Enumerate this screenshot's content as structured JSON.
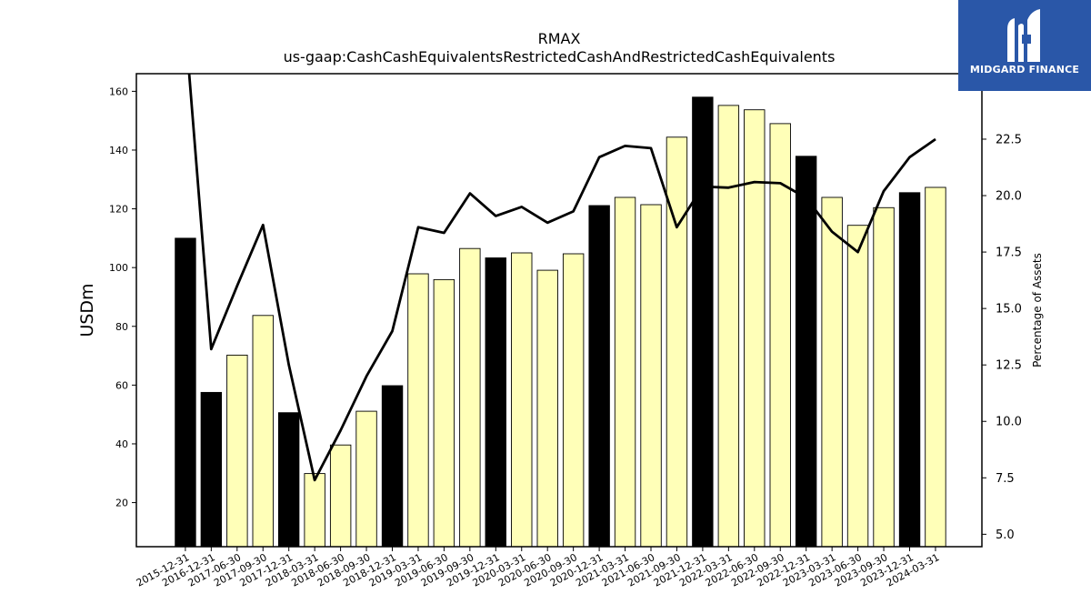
{
  "brand": {
    "name": "MIDGARD FINANCE",
    "bg_color": "#2a57a8",
    "icon": "midgard-m-logo-icon"
  },
  "chart_data": {
    "type": "bar",
    "title": "RMAX",
    "subtitle": "us-gaap:CashCashEquivalentsRestrictedCashAndRestrictedCashEquivalents",
    "ylabel": "USDm",
    "y2label": "Percentage of Assets",
    "ylim": [
      5,
      166
    ],
    "y2lim": [
      4.45,
      25.4
    ],
    "yticks": [
      20,
      40,
      60,
      80,
      100,
      120,
      140,
      160
    ],
    "y2ticks": [
      "5.0",
      "7.5",
      "10.0",
      "12.5",
      "15.0",
      "17.5",
      "20.0",
      "22.5"
    ],
    "grid": false,
    "categories": [
      "2015-12-31",
      "2016-12-31",
      "2017-06-30",
      "2017-09-30",
      "2017-12-31",
      "2018-03-31",
      "2018-06-30",
      "2018-09-30",
      "2018-12-31",
      "2019-03-31",
      "2019-06-30",
      "2019-09-30",
      "2019-12-31",
      "2020-03-31",
      "2020-06-30",
      "2020-09-30",
      "2020-12-31",
      "2021-03-31",
      "2021-06-30",
      "2021-09-30",
      "2021-12-31",
      "2022-03-31",
      "2022-06-30",
      "2022-09-30",
      "2022-12-31",
      "2023-03-31",
      "2023-06-30",
      "2023-09-30",
      "2023-12-31",
      "2024-03-31"
    ],
    "values": [
      110,
      57.5,
      70.2,
      83.7,
      50.6,
      29.9,
      39.6,
      51.1,
      59.8,
      97.9,
      95.9,
      106.5,
      103.3,
      105,
      99.1,
      104.7,
      121.1,
      123.9,
      121.4,
      144.4,
      158,
      155.2,
      153.7,
      149,
      137.9,
      123.9,
      114.4,
      120.4,
      125.5,
      127.3
    ],
    "annual_flags": [
      1,
      1,
      0,
      0,
      1,
      0,
      0,
      0,
      1,
      0,
      0,
      0,
      1,
      0,
      0,
      0,
      1,
      0,
      0,
      0,
      1,
      0,
      0,
      0,
      1,
      0,
      0,
      0,
      1,
      0
    ],
    "annual_color": "#000000",
    "quarter_color": "#ffffb8",
    "line_values": [
      27.5,
      13.2,
      16.0,
      18.7,
      12.5,
      7.4,
      9.6,
      12.0,
      14.0,
      18.6,
      18.35,
      20.1,
      19.1,
      19.5,
      18.8,
      19.3,
      21.7,
      22.2,
      22.1,
      18.6,
      20.4,
      20.35,
      20.6,
      20.55,
      19.9,
      18.4,
      17.5,
      20.2,
      21.7,
      22.5
    ],
    "line_color": "#000000"
  }
}
